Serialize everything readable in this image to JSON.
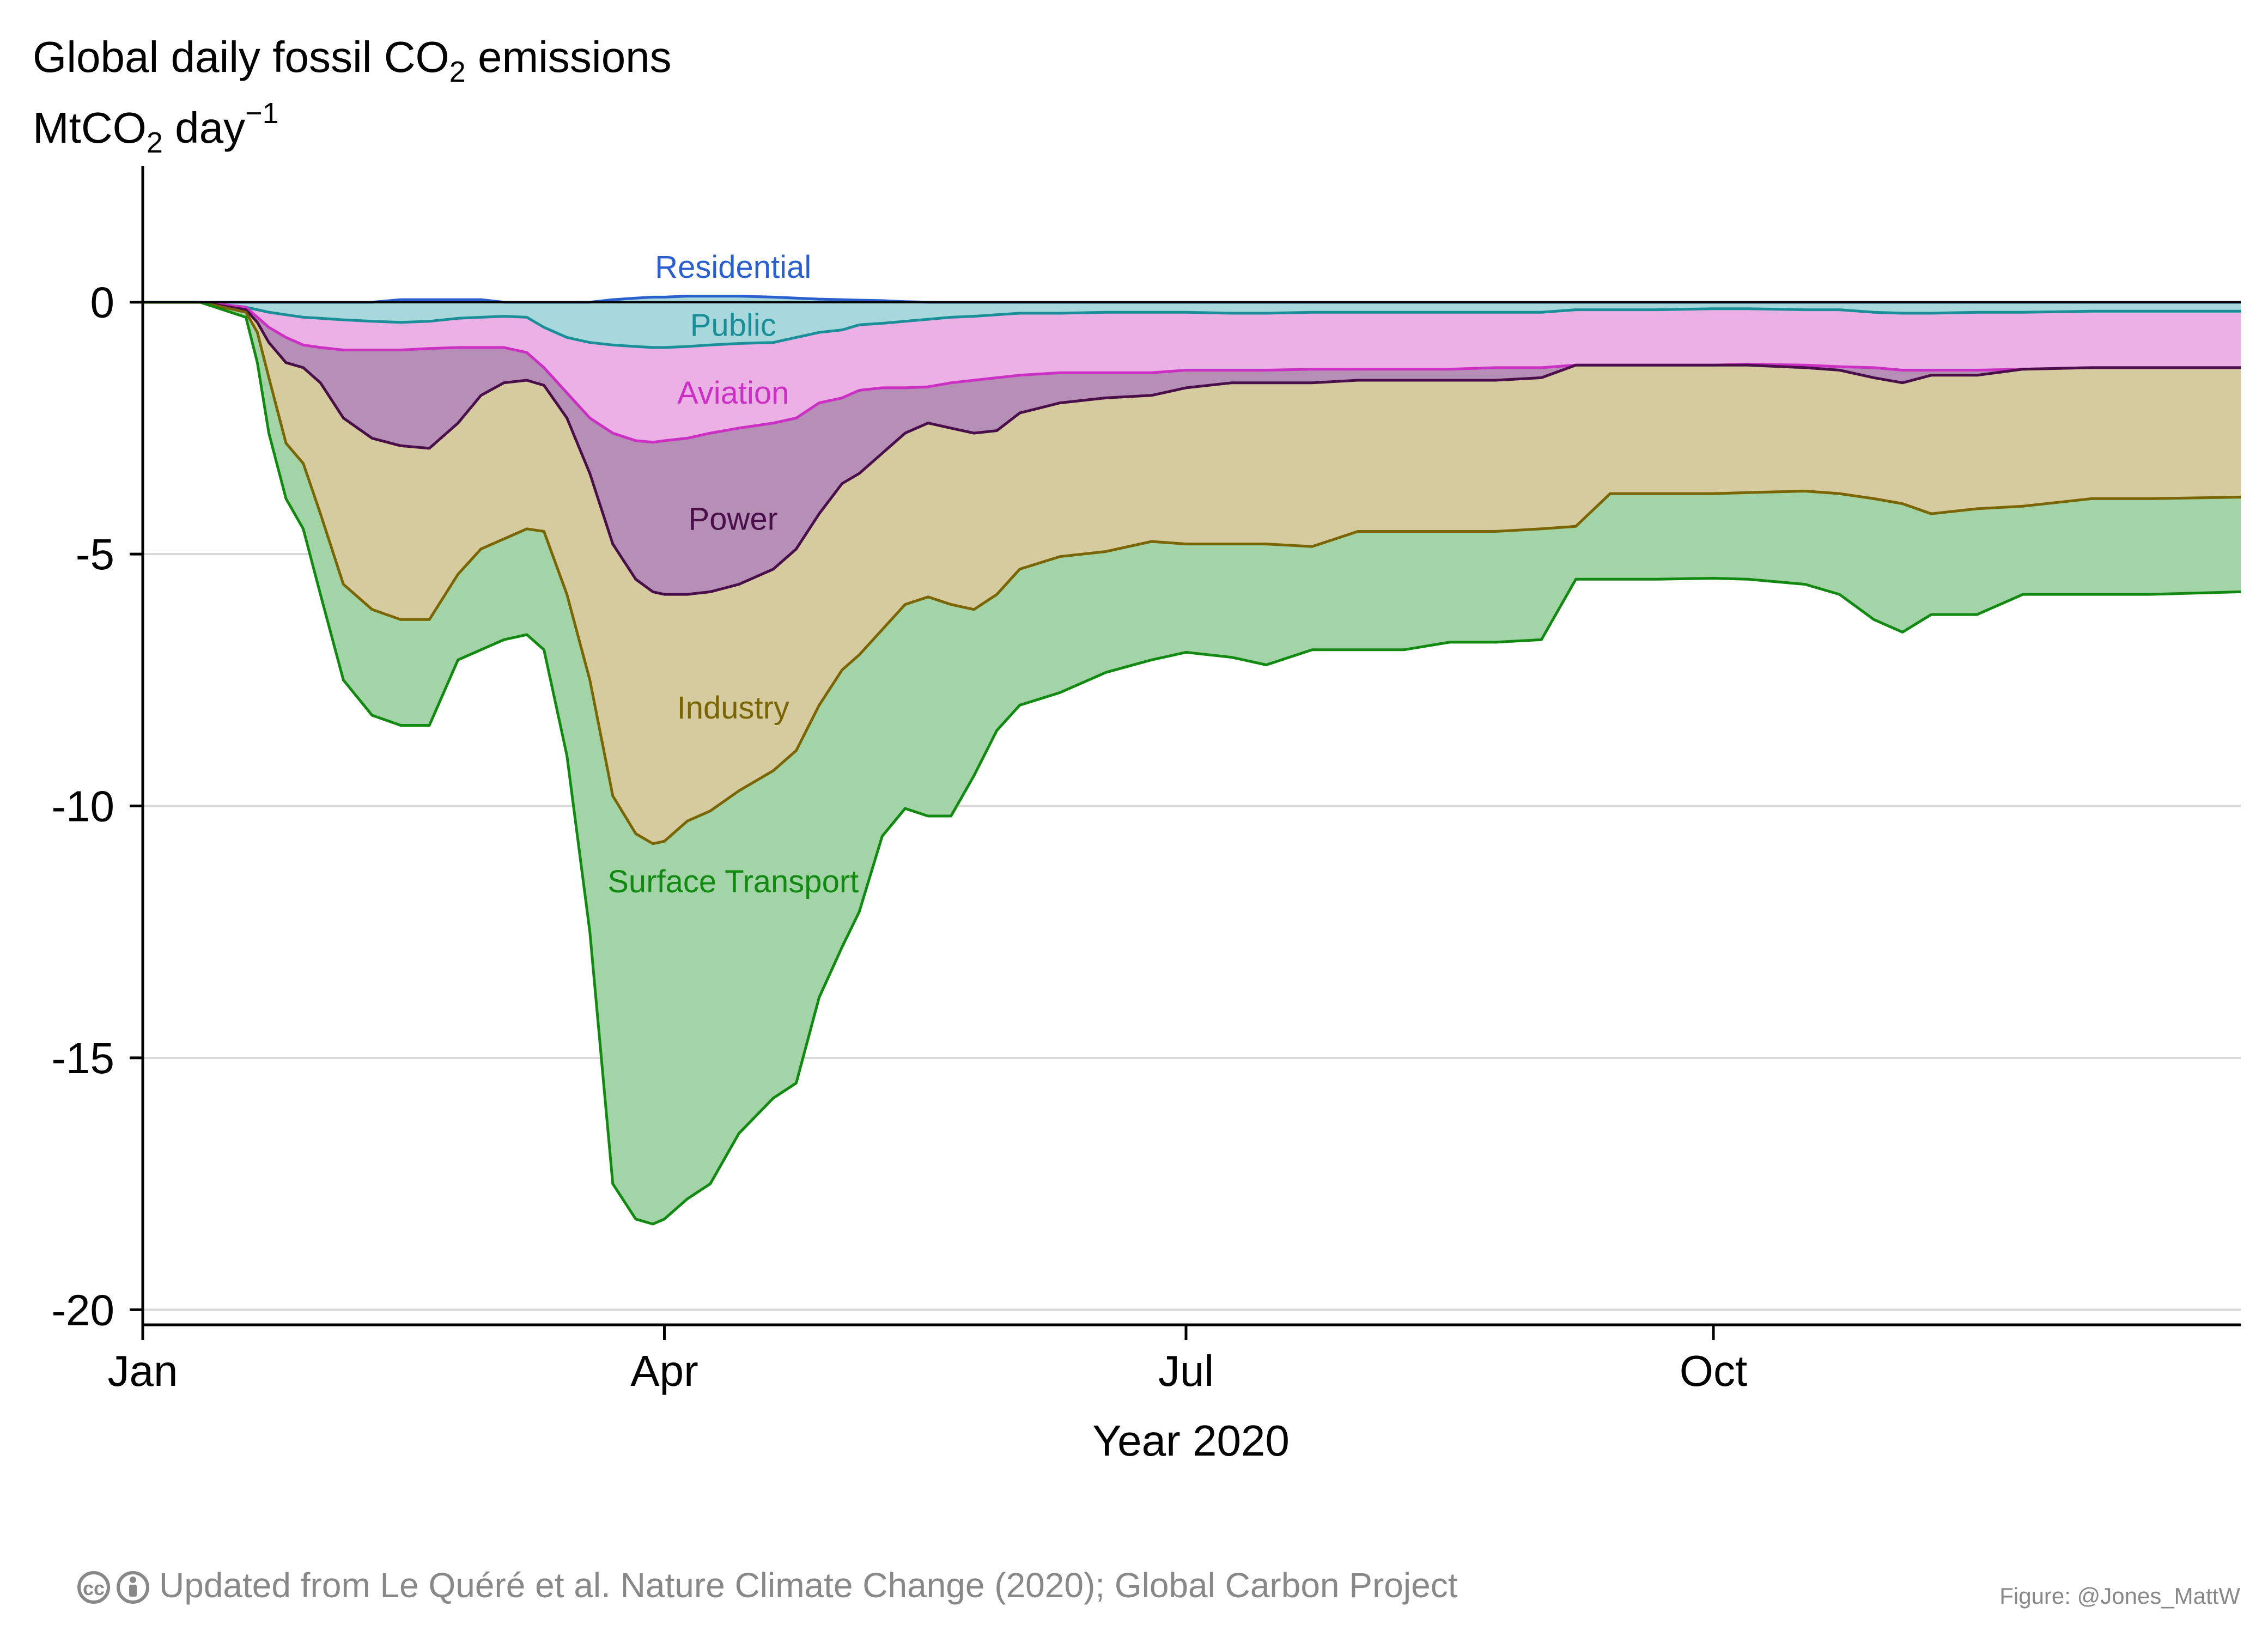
{
  "chart_data": {
    "type": "area",
    "title": "Global daily fossil CO",
    "title_sub": "2",
    "title_suffix": " emissions",
    "ylabel_main": "MtCO",
    "ylabel_sub": "2",
    "ylabel_unit": " day",
    "ylabel_sup": "−1",
    "xlabel": "Year 2020",
    "ylim": [
      -20.3,
      2.7
    ],
    "xlim": [
      0,
      366
    ],
    "grid": true,
    "x_ticks": [
      {
        "x": 0,
        "label": "Jan"
      },
      {
        "x": 91,
        "label": "Apr"
      },
      {
        "x": 182,
        "label": "Jul"
      },
      {
        "x": 274,
        "label": "Oct"
      }
    ],
    "y_ticks": [
      0,
      -5,
      -10,
      -15,
      -20
    ],
    "y_tick_labels": [
      "0",
      "-5",
      "-10",
      "-15",
      "-20"
    ],
    "x": [
      0,
      10,
      18,
      20,
      22,
      25,
      28,
      31,
      35,
      40,
      45,
      50,
      55,
      59,
      63,
      67,
      70,
      74,
      78,
      82,
      86,
      89,
      91,
      95,
      99,
      104,
      110,
      114,
      118,
      122,
      125,
      129,
      133,
      137,
      141,
      145,
      149,
      153,
      160,
      168,
      176,
      182,
      190,
      196,
      204,
      212,
      220,
      228,
      236,
      244,
      250,
      256,
      264,
      274,
      280,
      290,
      296,
      302,
      307,
      312,
      320,
      328,
      340,
      350,
      366
    ],
    "series": [
      {
        "name": "Residential",
        "color": "#2a5fcf",
        "fill": "none",
        "values": [
          0.0,
          0.0,
          0.0,
          0.0,
          0.0,
          0.0,
          0.0,
          0.0,
          0.0,
          0.0,
          0.05,
          0.05,
          0.05,
          0.05,
          0.0,
          0.0,
          0.0,
          0.0,
          0.0,
          0.05,
          0.08,
          0.1,
          0.1,
          0.12,
          0.12,
          0.12,
          0.1,
          0.08,
          0.06,
          0.05,
          0.04,
          0.03,
          0.01,
          0.0,
          0.0,
          0.0,
          0.0,
          0.0,
          0.0,
          0.0,
          0.0,
          0.0,
          0.0,
          0.0,
          0.0,
          0.0,
          0.0,
          0.0,
          0.0,
          0.0,
          0.0,
          0.0,
          0.0,
          0.0,
          0.0,
          0.0,
          0.0,
          0.0,
          0.0,
          0.0,
          0.0,
          0.0,
          0.0,
          0.0,
          0.0
        ]
      },
      {
        "name": "Public",
        "color": "#1a8f99",
        "fill": "#a8d8dc",
        "values": [
          0.0,
          0.0,
          -0.1,
          -0.15,
          -0.2,
          -0.25,
          -0.3,
          -0.32,
          -0.35,
          -0.38,
          -0.4,
          -0.38,
          -0.32,
          -0.3,
          -0.28,
          -0.3,
          -0.5,
          -0.7,
          -0.8,
          -0.85,
          -0.88,
          -0.9,
          -0.9,
          -0.88,
          -0.85,
          -0.82,
          -0.8,
          -0.7,
          -0.6,
          -0.55,
          -0.45,
          -0.42,
          -0.38,
          -0.34,
          -0.3,
          -0.28,
          -0.25,
          -0.22,
          -0.22,
          -0.2,
          -0.2,
          -0.2,
          -0.22,
          -0.22,
          -0.2,
          -0.2,
          -0.2,
          -0.2,
          -0.2,
          -0.2,
          -0.15,
          -0.15,
          -0.15,
          -0.13,
          -0.13,
          -0.15,
          -0.15,
          -0.2,
          -0.22,
          -0.22,
          -0.2,
          -0.2,
          -0.18,
          -0.18,
          -0.18
        ]
      },
      {
        "name": "Aviation",
        "color": "#cc2fc4",
        "fill": "#ebb0e4",
        "values": [
          0.0,
          0.0,
          -0.1,
          -0.3,
          -0.5,
          -0.7,
          -0.85,
          -0.9,
          -0.95,
          -0.95,
          -0.95,
          -0.92,
          -0.9,
          -0.9,
          -0.9,
          -1.0,
          -1.3,
          -1.8,
          -2.3,
          -2.6,
          -2.75,
          -2.78,
          -2.75,
          -2.7,
          -2.6,
          -2.5,
          -2.4,
          -2.3,
          -2.0,
          -1.9,
          -1.75,
          -1.7,
          -1.7,
          -1.68,
          -1.6,
          -1.55,
          -1.5,
          -1.45,
          -1.4,
          -1.4,
          -1.4,
          -1.35,
          -1.35,
          -1.35,
          -1.33,
          -1.33,
          -1.33,
          -1.33,
          -1.3,
          -1.3,
          -1.25,
          -1.25,
          -1.25,
          -1.25,
          -1.23,
          -1.25,
          -1.28,
          -1.3,
          -1.35,
          -1.35,
          -1.35,
          -1.33,
          -1.3,
          -1.3,
          -1.3
        ]
      },
      {
        "name": "Power",
        "color": "#4a0e4a",
        "fill": "#b58fb5",
        "values": [
          0.0,
          0.0,
          -0.15,
          -0.4,
          -0.8,
          -1.2,
          -1.3,
          -1.6,
          -2.3,
          -2.7,
          -2.85,
          -2.9,
          -2.4,
          -1.85,
          -1.6,
          -1.55,
          -1.65,
          -2.3,
          -3.4,
          -4.8,
          -5.5,
          -5.75,
          -5.8,
          -5.8,
          -5.75,
          -5.6,
          -5.3,
          -4.9,
          -4.2,
          -3.6,
          -3.4,
          -3.0,
          -2.6,
          -2.4,
          -2.5,
          -2.6,
          -2.55,
          -2.2,
          -2.0,
          -1.9,
          -1.85,
          -1.7,
          -1.6,
          -1.6,
          -1.6,
          -1.55,
          -1.55,
          -1.55,
          -1.55,
          -1.5,
          -1.25,
          -1.25,
          -1.25,
          -1.25,
          -1.25,
          -1.3,
          -1.35,
          -1.5,
          -1.6,
          -1.45,
          -1.45,
          -1.33,
          -1.3,
          -1.3,
          -1.3
        ]
      },
      {
        "name": "Industry",
        "color": "#7a6500",
        "fill": "#d6cb9e",
        "values": [
          0.0,
          0.0,
          -0.2,
          -0.6,
          -1.5,
          -2.8,
          -3.2,
          -4.2,
          -5.6,
          -6.1,
          -6.3,
          -6.3,
          -5.4,
          -4.9,
          -4.7,
          -4.5,
          -4.55,
          -5.8,
          -7.5,
          -9.8,
          -10.55,
          -10.75,
          -10.7,
          -10.3,
          -10.1,
          -9.7,
          -9.3,
          -8.9,
          -8.0,
          -7.3,
          -7.0,
          -6.5,
          -6.0,
          -5.85,
          -6.0,
          -6.1,
          -5.8,
          -5.3,
          -5.05,
          -4.95,
          -4.75,
          -4.8,
          -4.8,
          -4.8,
          -4.85,
          -4.55,
          -4.55,
          -4.55,
          -4.55,
          -4.5,
          -4.45,
          -3.8,
          -3.8,
          -3.8,
          -3.78,
          -3.75,
          -3.8,
          -3.9,
          -4.0,
          -4.2,
          -4.1,
          -4.05,
          -3.9,
          -3.9,
          -3.87
        ]
      },
      {
        "name": "Surface Transport",
        "color": "#128a12",
        "fill": "#a3d4a8",
        "values": [
          0.0,
          0.0,
          -0.3,
          -1.2,
          -2.6,
          -3.9,
          -4.5,
          -5.8,
          -7.5,
          -8.2,
          -8.4,
          -8.4,
          -7.1,
          -6.9,
          -6.7,
          -6.6,
          -6.9,
          -9.0,
          -12.5,
          -17.5,
          -18.2,
          -18.3,
          -18.2,
          -17.8,
          -17.5,
          -16.5,
          -15.8,
          -15.5,
          -13.8,
          -12.8,
          -12.1,
          -10.6,
          -10.05,
          -10.2,
          -10.2,
          -9.4,
          -8.5,
          -8.0,
          -7.75,
          -7.35,
          -7.1,
          -6.95,
          -7.05,
          -7.2,
          -6.9,
          -6.9,
          -6.9,
          -6.75,
          -6.75,
          -6.7,
          -5.5,
          -5.5,
          -5.5,
          -5.48,
          -5.5,
          -5.6,
          -5.8,
          -6.3,
          -6.55,
          -6.2,
          -6.2,
          -5.8,
          -5.8,
          -5.8,
          -5.75
        ]
      }
    ],
    "labels": [
      {
        "series": "Residential",
        "text": "Residential",
        "x": 103,
        "y": 0.7
      },
      {
        "series": "Public",
        "text": "Public",
        "x": 103,
        "y": -0.45
      },
      {
        "series": "Aviation",
        "text": "Aviation",
        "x": 103,
        "y": -1.8
      },
      {
        "series": "Power",
        "text": "Power",
        "x": 103,
        "y": -4.3
      },
      {
        "series": "Industry",
        "text": "Industry",
        "x": 103,
        "y": -8.05
      },
      {
        "series": "Surface Transport",
        "text": "Surface Transport",
        "x": 103,
        "y": -11.5
      }
    ]
  },
  "footer": {
    "cc_icon": "cc-icon",
    "by_icon": "by-attribution-icon",
    "source": "Updated from Le Quéré et al. Nature Climate Change (2020); Global Carbon Project",
    "credit": "Figure: @Jones_MattW",
    "color": "#888888"
  }
}
